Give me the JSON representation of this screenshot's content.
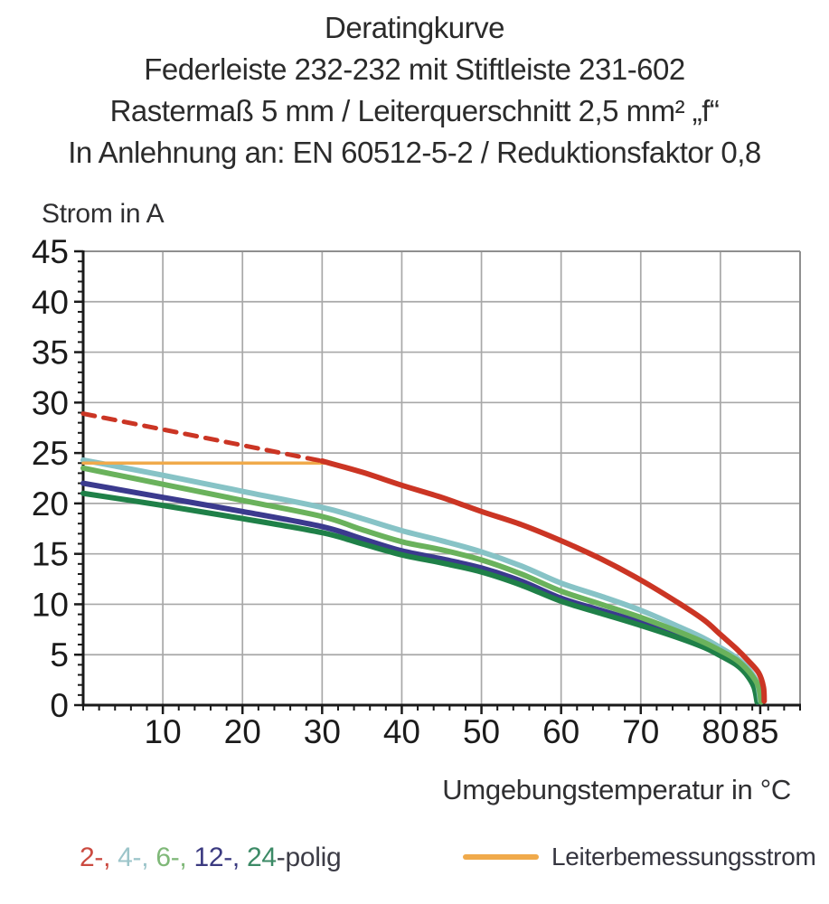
{
  "title": {
    "line1": "Deratingkurve",
    "line2": "Federleiste 232-232 mit Stiftleiste 231-602",
    "line3": "Rastermaß 5 mm / Leiterquerschnitt 2,5 mm² „f“",
    "line4": "In Anlehnung an: EN 60512-5-2 / Reduktionsfaktor 0,8"
  },
  "chart_data": {
    "type": "line",
    "title": "Deratingkurve",
    "xlabel": "Umgebungstemperatur in °C",
    "ylabel": "Strom in A",
    "xlim": [
      0,
      90
    ],
    "ylim": [
      0,
      45
    ],
    "x_major_ticks": [
      10,
      20,
      30,
      40,
      50,
      60,
      70,
      80,
      85
    ],
    "y_major_ticks": [
      0,
      5,
      10,
      15,
      20,
      25,
      30,
      35,
      40,
      45
    ],
    "x_gridline_step": 10,
    "y_gridline_step": 5,
    "x_minor_step": 2,
    "y_minor_step": 1,
    "grid": true,
    "legend_position": "bottom",
    "colors": {
      "grid": "#a8a8a8",
      "border": "#8f8f8f",
      "axis": "#1a1a1a",
      "tick_text": "#1b1b1b"
    },
    "series": [
      {
        "id": "12-polig",
        "name": "12-polig",
        "color": "#3b3a8e",
        "width": 6,
        "points": [
          [
            0,
            22.0
          ],
          [
            10,
            20.6
          ],
          [
            20,
            19.2
          ],
          [
            30,
            17.7
          ],
          [
            35,
            16.5
          ],
          [
            40,
            15.3
          ],
          [
            45,
            14.5
          ],
          [
            50,
            13.6
          ],
          [
            55,
            12.3
          ],
          [
            60,
            10.6
          ],
          [
            65,
            9.4
          ],
          [
            70,
            8.2
          ],
          [
            75,
            6.8
          ],
          [
            78,
            5.9
          ],
          [
            80,
            5.1
          ],
          [
            82,
            4.2
          ],
          [
            83.3,
            3.2
          ],
          [
            84.3,
            1.9
          ],
          [
            84.7,
            0.3
          ]
        ]
      },
      {
        "id": "24-polig",
        "name": "24-polig",
        "color": "#1f8048",
        "width": 6,
        "points": [
          [
            0,
            21.0
          ],
          [
            10,
            19.8
          ],
          [
            20,
            18.5
          ],
          [
            30,
            17.1
          ],
          [
            35,
            16.0
          ],
          [
            40,
            14.9
          ],
          [
            45,
            14.1
          ],
          [
            50,
            13.2
          ],
          [
            55,
            11.9
          ],
          [
            60,
            10.3
          ],
          [
            65,
            9.1
          ],
          [
            70,
            7.9
          ],
          [
            75,
            6.6
          ],
          [
            78,
            5.7
          ],
          [
            80,
            4.9
          ],
          [
            82,
            4.0
          ],
          [
            83.2,
            3.1
          ],
          [
            84.2,
            1.8
          ],
          [
            84.6,
            0.3
          ]
        ]
      },
      {
        "id": "4-polig",
        "name": "4-polig",
        "color": "#87c3c6",
        "width": 6,
        "points": [
          [
            0,
            24.3
          ],
          [
            10,
            22.8
          ],
          [
            20,
            21.2
          ],
          [
            30,
            19.6
          ],
          [
            35,
            18.5
          ],
          [
            40,
            17.3
          ],
          [
            45,
            16.3
          ],
          [
            50,
            15.2
          ],
          [
            55,
            13.8
          ],
          [
            60,
            12.1
          ],
          [
            65,
            10.8
          ],
          [
            70,
            9.4
          ],
          [
            75,
            7.7
          ],
          [
            78,
            6.6
          ],
          [
            80,
            5.7
          ],
          [
            82,
            4.7
          ],
          [
            83.5,
            3.6
          ],
          [
            84.6,
            2.2
          ],
          [
            85,
            0.4
          ]
        ]
      },
      {
        "id": "6-polig",
        "name": "6-polig",
        "color": "#6ab25c",
        "width": 6,
        "points": [
          [
            0,
            23.5
          ],
          [
            10,
            21.9
          ],
          [
            20,
            20.3
          ],
          [
            30,
            18.7
          ],
          [
            35,
            17.4
          ],
          [
            40,
            16.2
          ],
          [
            45,
            15.4
          ],
          [
            50,
            14.4
          ],
          [
            55,
            13.0
          ],
          [
            60,
            11.3
          ],
          [
            65,
            10.0
          ],
          [
            70,
            8.7
          ],
          [
            75,
            7.2
          ],
          [
            78,
            6.2
          ],
          [
            80,
            5.4
          ],
          [
            82,
            4.5
          ],
          [
            83.5,
            3.4
          ],
          [
            84.7,
            2.0
          ],
          [
            85.1,
            0.3
          ]
        ]
      },
      {
        "id": "leiterbemessungsstrom",
        "name": "Leiterbemessungsstrom",
        "color": "#f0aa4b",
        "width": 3.5,
        "points": [
          [
            0,
            24.0
          ],
          [
            30.8,
            24.0
          ]
        ]
      },
      {
        "id": "2-polig-gestrichelt",
        "name": "2-polig (gestrichelt)",
        "color": "#cb3524",
        "width": 5,
        "dash": [
          13,
          10
        ],
        "points": [
          [
            0,
            28.9
          ],
          [
            30,
            24.2
          ]
        ]
      },
      {
        "id": "2-polig",
        "name": "2-polig",
        "color": "#cb3524",
        "width": 6,
        "points": [
          [
            30,
            24.2
          ],
          [
            35,
            23.1
          ],
          [
            40,
            21.8
          ],
          [
            45,
            20.6
          ],
          [
            50,
            19.2
          ],
          [
            55,
            17.9
          ],
          [
            60,
            16.3
          ],
          [
            65,
            14.5
          ],
          [
            70,
            12.4
          ],
          [
            75,
            10.0
          ],
          [
            78,
            8.4
          ],
          [
            80,
            7.0
          ],
          [
            82,
            5.6
          ],
          [
            83.5,
            4.4
          ],
          [
            84.8,
            3.2
          ],
          [
            85.4,
            1.8
          ],
          [
            85.5,
            0.4
          ]
        ]
      }
    ]
  },
  "legend_left": {
    "items": [
      {
        "label": "2-, ",
        "color": "#cb4a40"
      },
      {
        "label": "4-, ",
        "color": "#9cc5ca"
      },
      {
        "label": "6-, ",
        "color": "#7fb878"
      },
      {
        "label": "12-, ",
        "color": "#3b3a80"
      },
      {
        "label": "24",
        "color": "#3c8a66"
      },
      {
        "label": "-polig",
        "color": "#3c3c46"
      }
    ]
  },
  "legend_right": {
    "label": "Leiterbemessungsstrom",
    "swatch_color": "#f0aa4b"
  }
}
